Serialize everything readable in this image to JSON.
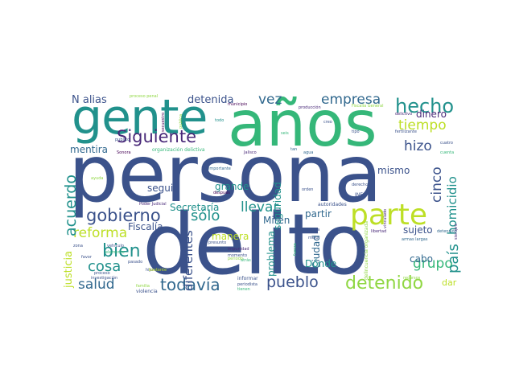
{
  "palette": {
    "navy": "#3b528b",
    "purple": "#482878",
    "teal": "#21918c",
    "blue": "#31688e",
    "green": "#35b779",
    "lime": "#90d743",
    "yellow": "#bddf26",
    "dark": "#440154"
  },
  "words": {
    "persona": "persona",
    "delito": "delito",
    "anos": "años",
    "gente": "gente",
    "parte": "parte",
    "hecho": "hecho",
    "empresa": "empresa",
    "siguiente": "Siguiente",
    "tiempo": "tiempo",
    "hizo": "hizo",
    "pais": "país",
    "gobierno": "gobierno",
    "bien": "bien",
    "cosa": "cosa",
    "salud": "salud",
    "todavia": "todavía",
    "pueblo": "pueblo",
    "detenido": "detenido",
    "reforma": "reforma",
    "acuerdo": "acuerdo",
    "llevar": "llevar",
    "solo": "sólo",
    "grupo": "grupo",
    "cinco": "cinco",
    "homicidio": "homicidio",
    "vez": "vez",
    "detenida": "detenida",
    "n_alias": "N alias",
    "dinero": "dinero",
    "mentira": "mentira",
    "mismo": "mismo",
    "seguir": "seguir",
    "grande": "grande",
    "secretaria": "Secretaría",
    "fiscalia": "Fiscalía",
    "manera": "manera",
    "diferentes": "diferentes",
    "justicia": "justicia",
    "miren": "Miren",
    "seguridad": "seguridad",
    "problema": "problema",
    "ciudad": "Ciudad",
    "donde": "Dónde",
    "partir": "partir",
    "sujeto": "sujeto",
    "cabo": "cabo",
    "dar": "dar",
    "proceso_penal": "proceso penal",
    "municipio": "municipio",
    "produccion": "producción",
    "fiscalia_general": "Fiscalía General",
    "delictivo": "delictivo",
    "fertilizante": "fertilizante",
    "cuatro": "cuatro",
    "siempre": "siempre",
    "organizacion": "organización delictiva",
    "publico": "publico",
    "secuestro": "secuestro",
    "sonora": "Sonora",
    "jalisco": "Jalisco",
    "importante": "importante",
    "ine": "INE",
    "orden": "orden",
    "derecho": "derecho",
    "ayuda": "ayuda",
    "despues": "después",
    "poder_judicial": "Poder Judicial",
    "autoridades": "autoridades",
    "libertad": "libertad",
    "armas_largas": "armas largas",
    "detencion": "detención",
    "presunto": "presunto",
    "informa": "informa",
    "impunidad": "impunidad",
    "sentencia": "sentencia",
    "vehiculo": "vehículo",
    "pasado": "pasado",
    "elemento": "elemento",
    "investigacion": "investigación",
    "familia": "familia",
    "violencia": "violencia",
    "bastante": "bastante",
    "informar": "informar",
    "periodista": "periodista",
    "tienen": "tienen",
    "periodo": "periodo",
    "zona": "zona",
    "favor": "favor",
    "hijo": "hijo",
    "creo": "creo",
    "tipo": "tipo",
    "agua": "agua",
    "tan": "tan",
    "mejor": "mejor",
    "momento": "momento",
    "recursos": "recursos",
    "vinculado": "vinculado",
    "delincuencia": "delincuencia organizada",
    "fuerza": "fuerza",
    "todo": "todo",
    "publica": "publica",
    "atras": "atrás",
    "seis": "seis",
    "cuenta": "cuenta",
    "proceso": "proceso"
  }
}
